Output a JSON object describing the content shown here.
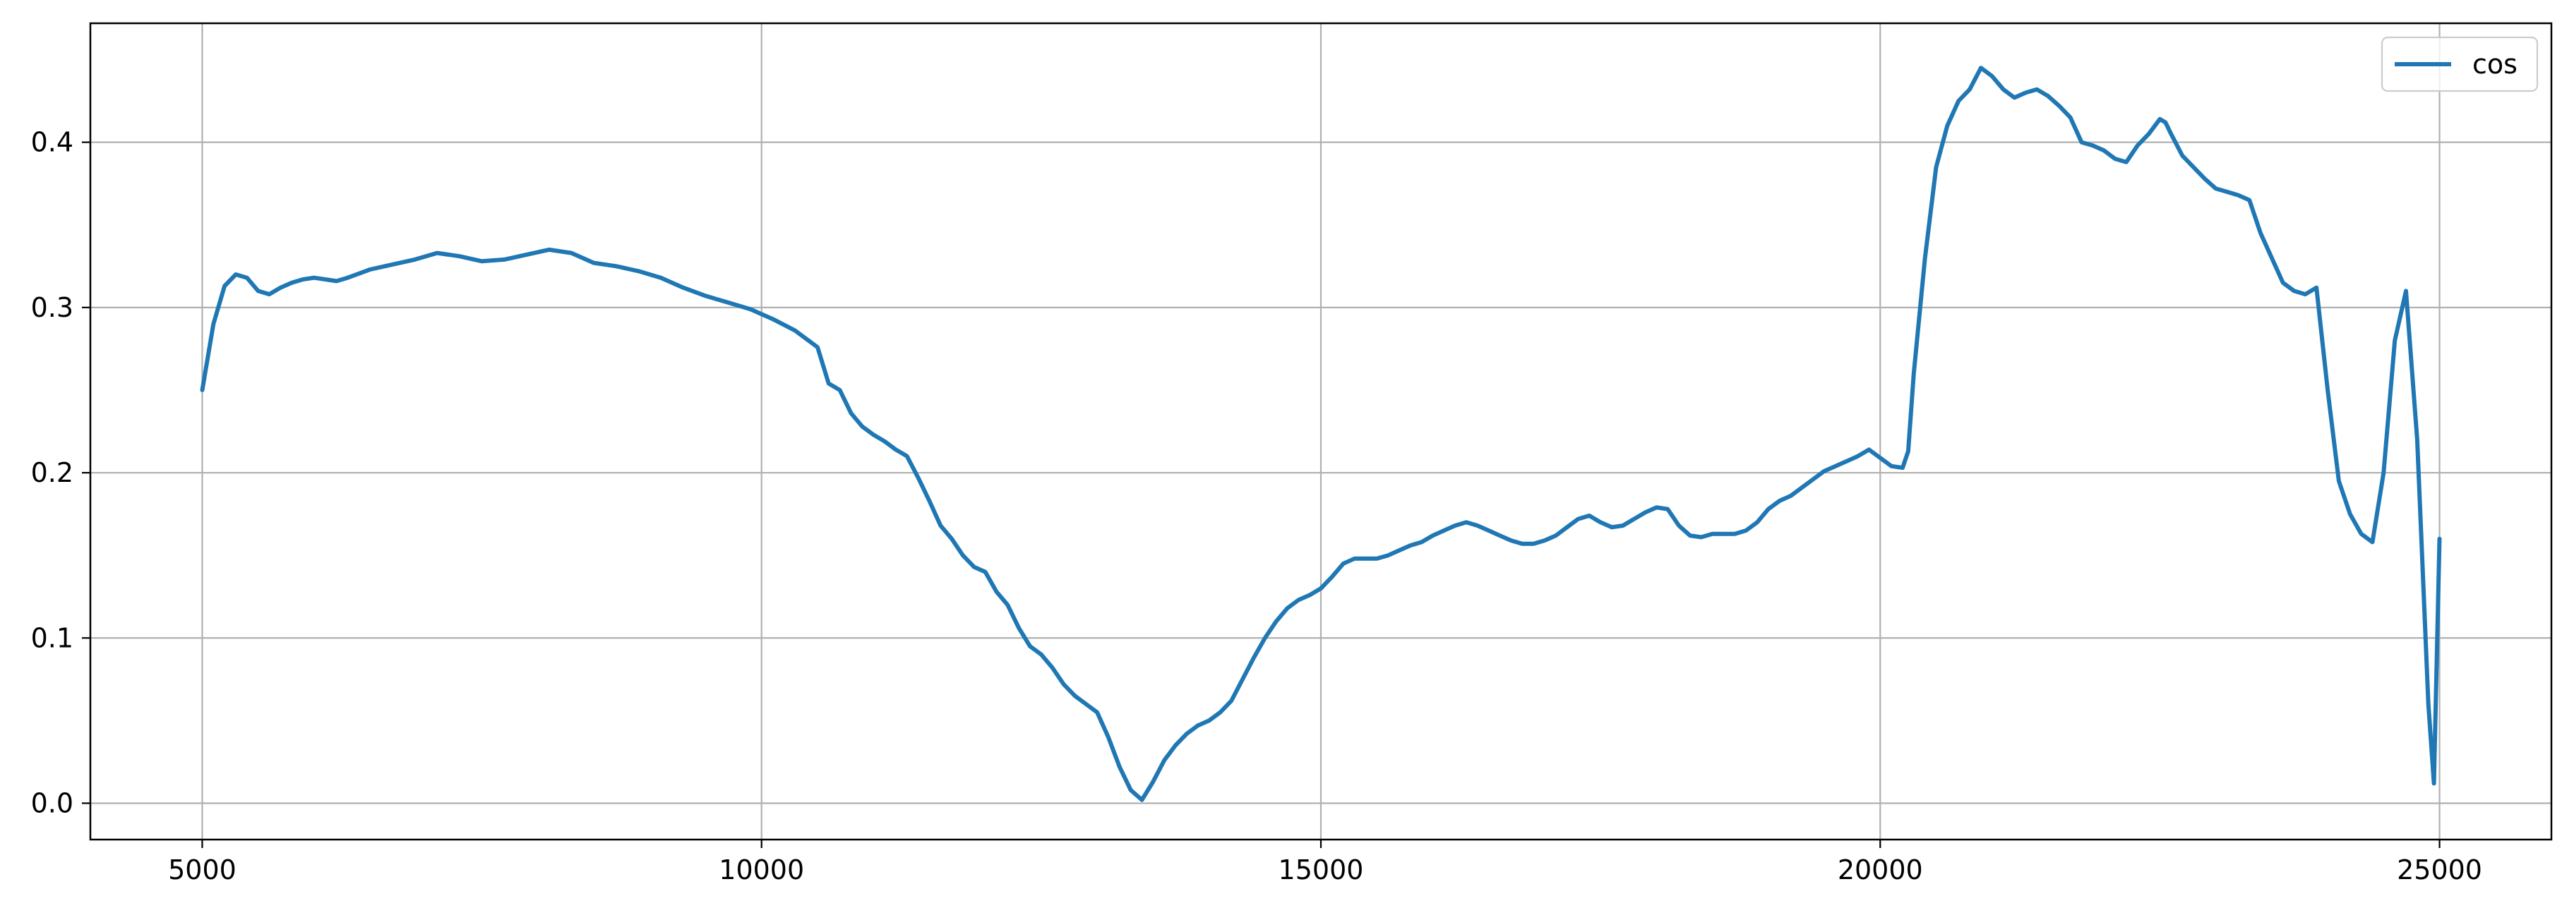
{
  "chart_data": {
    "type": "line",
    "title": "",
    "xlabel": "",
    "ylabel": "",
    "xlim": [
      4000,
      26000
    ],
    "ylim": [
      -0.022,
      0.472
    ],
    "xticks": [
      5000,
      10000,
      15000,
      20000,
      25000
    ],
    "xtick_labels": [
      "5000",
      "10000",
      "15000",
      "20000",
      "25000"
    ],
    "yticks": [
      0.0,
      0.1,
      0.2,
      0.3,
      0.4
    ],
    "ytick_labels": [
      "0.0",
      "0.1",
      "0.2",
      "0.3",
      "0.4"
    ],
    "grid": true,
    "legend": {
      "placement": "top-right"
    },
    "series": [
      {
        "name": "cos",
        "color": "#1f77b4",
        "x": [
          5000,
          5100,
          5200,
          5300,
          5400,
          5500,
          5600,
          5700,
          5800,
          5900,
          6000,
          6100,
          6200,
          6300,
          6500,
          6700,
          6900,
          7100,
          7300,
          7500,
          7700,
          7900,
          8100,
          8300,
          8500,
          8700,
          8900,
          9100,
          9300,
          9500,
          9700,
          9900,
          10100,
          10300,
          10500,
          10600,
          10700,
          10800,
          10900,
          11000,
          11100,
          11200,
          11300,
          11400,
          11500,
          11600,
          11700,
          11800,
          11900,
          12000,
          12100,
          12200,
          12300,
          12400,
          12500,
          12600,
          12700,
          12800,
          12900,
          13000,
          13100,
          13200,
          13300,
          13400,
          13500,
          13600,
          13700,
          13800,
          13900,
          14000,
          14100,
          14200,
          14300,
          14400,
          14500,
          14600,
          14700,
          14800,
          14900,
          15000,
          15100,
          15200,
          15300,
          15400,
          15500,
          15600,
          15700,
          15800,
          15900,
          16000,
          16100,
          16200,
          16300,
          16400,
          16500,
          16600,
          16700,
          16800,
          16900,
          17000,
          17100,
          17200,
          17300,
          17400,
          17500,
          17600,
          17700,
          17800,
          17900,
          18000,
          18100,
          18200,
          18300,
          18400,
          18500,
          18600,
          18700,
          18800,
          18900,
          19000,
          19100,
          19200,
          19300,
          19400,
          19500,
          19600,
          19700,
          19800,
          19900,
          20000,
          20100,
          20200,
          20250,
          20300,
          20400,
          20500,
          20600,
          20700,
          20800,
          20900,
          21000,
          21100,
          21200,
          21300,
          21400,
          21500,
          21600,
          21700,
          21800,
          21900,
          22000,
          22100,
          22200,
          22300,
          22400,
          22500,
          22550,
          22600,
          22700,
          22800,
          22900,
          23000,
          23100,
          23200,
          23300,
          23400,
          23500,
          23600,
          23700,
          23800,
          23900,
          24000,
          24100,
          24200,
          24300,
          24400,
          24500,
          24600,
          24700,
          24800,
          24900,
          24950,
          25000
        ],
        "y": [
          0.25,
          0.29,
          0.313,
          0.32,
          0.318,
          0.31,
          0.308,
          0.312,
          0.315,
          0.317,
          0.318,
          0.317,
          0.316,
          0.318,
          0.323,
          0.326,
          0.329,
          0.333,
          0.331,
          0.328,
          0.329,
          0.332,
          0.335,
          0.333,
          0.327,
          0.325,
          0.322,
          0.318,
          0.312,
          0.307,
          0.303,
          0.299,
          0.293,
          0.286,
          0.276,
          0.254,
          0.25,
          0.236,
          0.228,
          0.223,
          0.219,
          0.214,
          0.21,
          0.197,
          0.183,
          0.168,
          0.16,
          0.15,
          0.143,
          0.14,
          0.128,
          0.12,
          0.106,
          0.095,
          0.09,
          0.082,
          0.072,
          0.065,
          0.06,
          0.055,
          0.04,
          0.022,
          0.008,
          0.002,
          0.013,
          0.026,
          0.035,
          0.042,
          0.047,
          0.05,
          0.055,
          0.062,
          0.075,
          0.088,
          0.1,
          0.11,
          0.118,
          0.123,
          0.126,
          0.13,
          0.137,
          0.145,
          0.148,
          0.148,
          0.148,
          0.15,
          0.153,
          0.156,
          0.158,
          0.162,
          0.165,
          0.168,
          0.17,
          0.168,
          0.165,
          0.162,
          0.159,
          0.157,
          0.157,
          0.159,
          0.162,
          0.167,
          0.172,
          0.174,
          0.17,
          0.167,
          0.168,
          0.172,
          0.176,
          0.179,
          0.178,
          0.168,
          0.162,
          0.161,
          0.163,
          0.163,
          0.163,
          0.165,
          0.17,
          0.178,
          0.183,
          0.186,
          0.191,
          0.196,
          0.201,
          0.204,
          0.207,
          0.21,
          0.214,
          0.209,
          0.204,
          0.203,
          0.213,
          0.26,
          0.33,
          0.385,
          0.41,
          0.425,
          0.432,
          0.445,
          0.44,
          0.432,
          0.427,
          0.43,
          0.432,
          0.428,
          0.422,
          0.415,
          0.4,
          0.398,
          0.395,
          0.39,
          0.388,
          0.398,
          0.405,
          0.414,
          0.412,
          0.405,
          0.392,
          0.385,
          0.378,
          0.372,
          0.37,
          0.368,
          0.365,
          0.345,
          0.33,
          0.315,
          0.31,
          0.308,
          0.312,
          0.25,
          0.195,
          0.175,
          0.163,
          0.158,
          0.2,
          0.28,
          0.31,
          0.22,
          0.06,
          0.012,
          0.16
        ]
      }
    ]
  }
}
